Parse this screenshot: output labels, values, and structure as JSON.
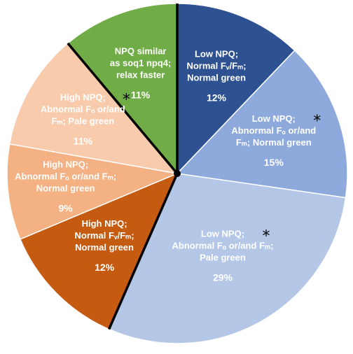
{
  "chart_data": {
    "type": "pie",
    "slices": [
      {
        "label_lines": [
          "Low NPQ;",
          "Normal Fᵥ/Fₘ;",
          "Normal green"
        ],
        "pct_label": "12%",
        "value": 12,
        "color": "#2e5291",
        "starred": false
      },
      {
        "label_lines": [
          "Low NPQ;",
          "Abnormal Fₒ or/and",
          "Fₘ; Normal green"
        ],
        "pct_label": "15%",
        "value": 15,
        "color": "#8ea9db",
        "starred": true
      },
      {
        "label_lines": [
          "Low NPQ;",
          "Abnormal Fₒ or/and Fₘ;",
          "Pale green"
        ],
        "pct_label": "29%",
        "value": 29,
        "color": "#b4c7e7",
        "starred": true
      },
      {
        "label_lines": [
          "High NPQ;",
          "Normal Fᵥ/Fₘ;",
          "Normal green"
        ],
        "pct_label": "12%",
        "value": 12,
        "color": "#c55a11",
        "starred": false
      },
      {
        "label_lines": [
          "High NPQ;",
          "Abnormal Fₒ or/and Fₘ;",
          "Normal green"
        ],
        "pct_label": "9%",
        "value": 9,
        "color": "#f4b183",
        "starred": false
      },
      {
        "label_lines": [
          "High NPQ;",
          "Abnormal Fₒ or/and",
          "Fₘ; Pale green"
        ],
        "pct_label": "11%",
        "value": 11,
        "color": "#f8cbad",
        "starred": true
      },
      {
        "label_lines": [
          "NPQ similar",
          "as soq1 npq4;",
          "relax faster"
        ],
        "pct_label": "11%",
        "value": 11,
        "color": "#70ad47",
        "starred": false
      }
    ],
    "star_symbol": "*",
    "separator_color": "#000000"
  }
}
